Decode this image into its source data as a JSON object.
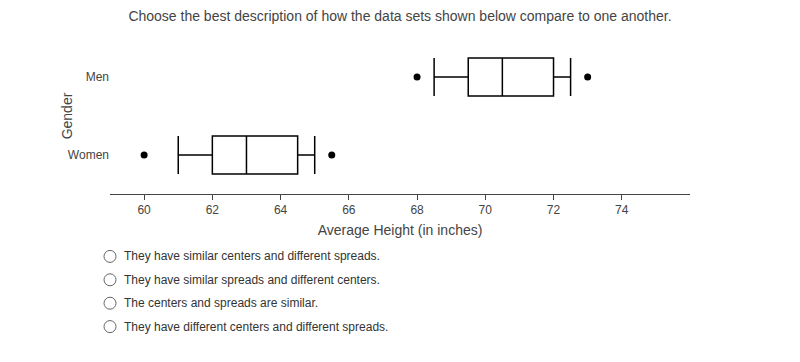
{
  "chart_data": {
    "type": "box",
    "orientation": "horizontal",
    "title": "Choose the best description of how the data sets shown below compare to one another.",
    "xlabel": "Average Height (in inches)",
    "ylabel": "Gender",
    "xlim": [
      59,
      76
    ],
    "xticks": [
      60,
      62,
      64,
      66,
      68,
      70,
      72,
      74
    ],
    "grid": false,
    "color": "#000000",
    "series": [
      {
        "name": "Men",
        "whisker_low": 68.5,
        "q1": 69.5,
        "median": 70.5,
        "q3": 72.0,
        "whisker_high": 72.5,
        "outliers": [
          68.0,
          73.0
        ]
      },
      {
        "name": "Women",
        "whisker_low": 61.0,
        "q1": 62.0,
        "median": 63.0,
        "q3": 64.5,
        "whisker_high": 65.0,
        "outliers": [
          60.0,
          65.5
        ]
      }
    ],
    "annotations": [
      "They have similar centers and different spreads.",
      "They have similar spreads and different centers.",
      "The centers and spreads are similar.",
      "They have different centers and different spreads."
    ]
  }
}
